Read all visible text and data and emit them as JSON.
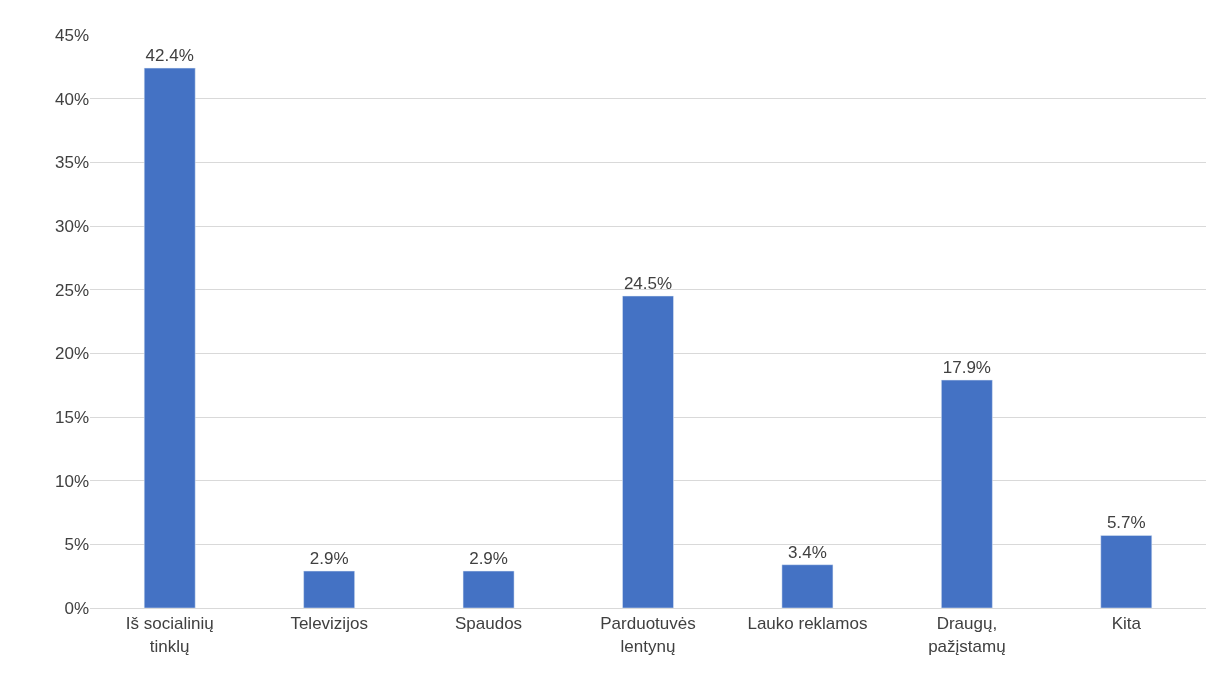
{
  "chart_data": {
    "type": "bar",
    "categories": [
      "Iš socialinių tinklų",
      "Televizijos",
      "Spaudos",
      "Parduotuvės lentynų",
      "Lauko reklamos",
      "Draugų, pažįstamų",
      "Kita"
    ],
    "values": [
      42.4,
      2.9,
      2.9,
      24.5,
      3.4,
      17.9,
      5.7
    ],
    "value_labels": [
      "42.4%",
      "2.9%",
      "2.9%",
      "24.5%",
      "3.4%",
      "17.9%",
      "5.7%"
    ],
    "color": "#4472c4",
    "ylim": [
      0,
      45
    ],
    "yticks": [
      {
        "value": 0,
        "label": "0%"
      },
      {
        "value": 5,
        "label": "5%"
      },
      {
        "value": 10,
        "label": "10%"
      },
      {
        "value": 15,
        "label": "15%"
      },
      {
        "value": 20,
        "label": "20%"
      },
      {
        "value": 25,
        "label": "25%"
      },
      {
        "value": 30,
        "label": "30%"
      },
      {
        "value": 35,
        "label": "35%"
      },
      {
        "value": 40,
        "label": "40%"
      },
      {
        "value": 45,
        "label": "45%"
      }
    ],
    "grid": "y"
  }
}
